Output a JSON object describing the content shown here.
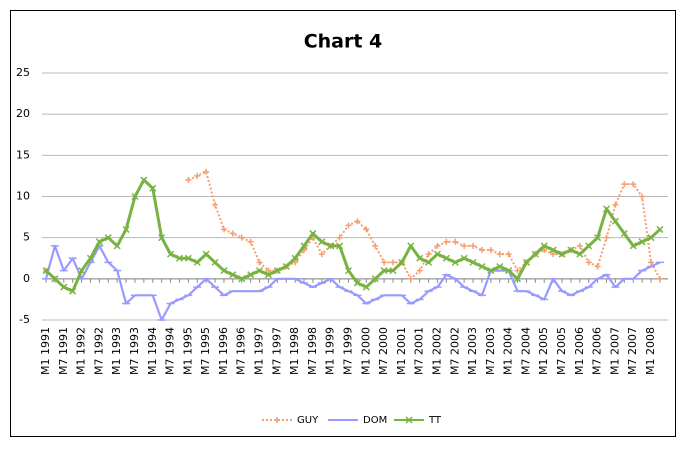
{
  "chart_data": {
    "type": "line",
    "title": "Chart 4",
    "categories": [
      "M1 1991",
      null,
      "M7 1991",
      null,
      "M1 1992",
      null,
      "M7 1992",
      null,
      "M1 1993",
      null,
      "M7 1993",
      null,
      "M1 1994",
      null,
      "M7 1994",
      null,
      "M1 1995",
      null,
      "M7 1995",
      null,
      "M1 1996",
      null,
      "M7 1996",
      null,
      "M1 1997",
      null,
      "M7 1997",
      null,
      "M1 1998",
      null,
      "M7 1998",
      null,
      "M1 1999",
      null,
      "M7 1999",
      null,
      "M1 2000",
      null,
      "M7 2000",
      null,
      "M1 2001",
      null,
      "M7 2001",
      null,
      "M1 2002",
      null,
      "M7 2002",
      null,
      "M1 2003",
      null,
      "M7 2003",
      null,
      "M1 2004",
      null,
      "M7 2004",
      null,
      "M1 2005",
      null,
      "M7 2005",
      null,
      "M1 2006",
      null,
      "M7 2006",
      null,
      "M1 2007",
      null,
      "M7 2007",
      null,
      "M1 2008",
      null
    ],
    "series": [
      {
        "name": "GUY",
        "color": "#f4a070",
        "style": "dotted",
        "marker": "plus",
        "values": [
          1,
          0,
          null,
          null,
          null,
          null,
          null,
          null,
          null,
          null,
          null,
          null,
          null,
          null,
          null,
          null,
          12,
          12.5,
          13,
          9,
          6,
          5.5,
          5,
          4.5,
          2,
          1,
          1,
          1.5,
          2,
          3.5,
          5,
          3,
          4,
          5,
          6.5,
          7,
          6,
          4,
          2,
          2,
          2,
          0,
          1,
          3,
          4,
          4.5,
          4.5,
          4,
          4,
          3.5,
          3.5,
          3,
          3,
          1,
          2,
          3,
          3.5,
          3,
          3,
          3.5,
          4,
          2,
          1.5,
          5,
          9,
          11.5,
          11.5,
          10,
          2,
          0
        ]
      },
      {
        "name": "DOM",
        "color": "#9999ff",
        "style": "solid",
        "marker": "dash",
        "values": [
          0,
          4,
          1,
          2.5,
          0,
          2,
          4,
          2,
          1,
          -3,
          -2,
          -2,
          -2,
          -5,
          -3,
          -2.5,
          -2,
          -1,
          0,
          -1,
          -2,
          -1.5,
          -1.5,
          -1.5,
          -1.5,
          -1,
          0,
          0,
          0,
          -0.5,
          -1,
          -0.5,
          0,
          -1,
          -1.5,
          -2,
          -3,
          -2.5,
          -2,
          -2,
          -2,
          -3,
          -2.5,
          -1.5,
          -1,
          0.5,
          0,
          -1,
          -1.5,
          -2,
          1,
          1,
          1,
          -1.5,
          -1.5,
          -2,
          -2.5,
          0,
          -1.5,
          -2,
          -1.5,
          -1,
          0,
          0.5,
          -1,
          0,
          0,
          1,
          1.5,
          2
        ]
      },
      {
        "name": "TT",
        "color": "#77b340",
        "style": "solid",
        "marker": "x",
        "values": [
          1,
          0,
          -1,
          -1.5,
          1,
          2.5,
          4.5,
          5,
          4,
          6,
          10,
          12,
          11,
          5,
          3,
          2.5,
          2.5,
          2,
          3,
          2,
          1,
          0.5,
          0,
          0.5,
          1,
          0.5,
          1,
          1.5,
          2.5,
          4,
          5.5,
          4.5,
          4,
          4,
          1,
          -0.5,
          -1,
          0,
          1,
          1,
          2,
          4,
          2.5,
          2,
          3,
          2.5,
          2,
          2.5,
          2,
          1.5,
          1,
          1.5,
          1,
          0,
          2,
          3,
          4,
          3.5,
          3,
          3.5,
          3,
          4,
          5,
          8.5,
          7,
          5.5,
          4,
          4.5,
          5,
          6
        ]
      }
    ],
    "ylim": [
      -5,
      25
    ],
    "yticks": [
      -5,
      0,
      5,
      10,
      15,
      20,
      25
    ],
    "grid": true,
    "legend": "bottom"
  }
}
